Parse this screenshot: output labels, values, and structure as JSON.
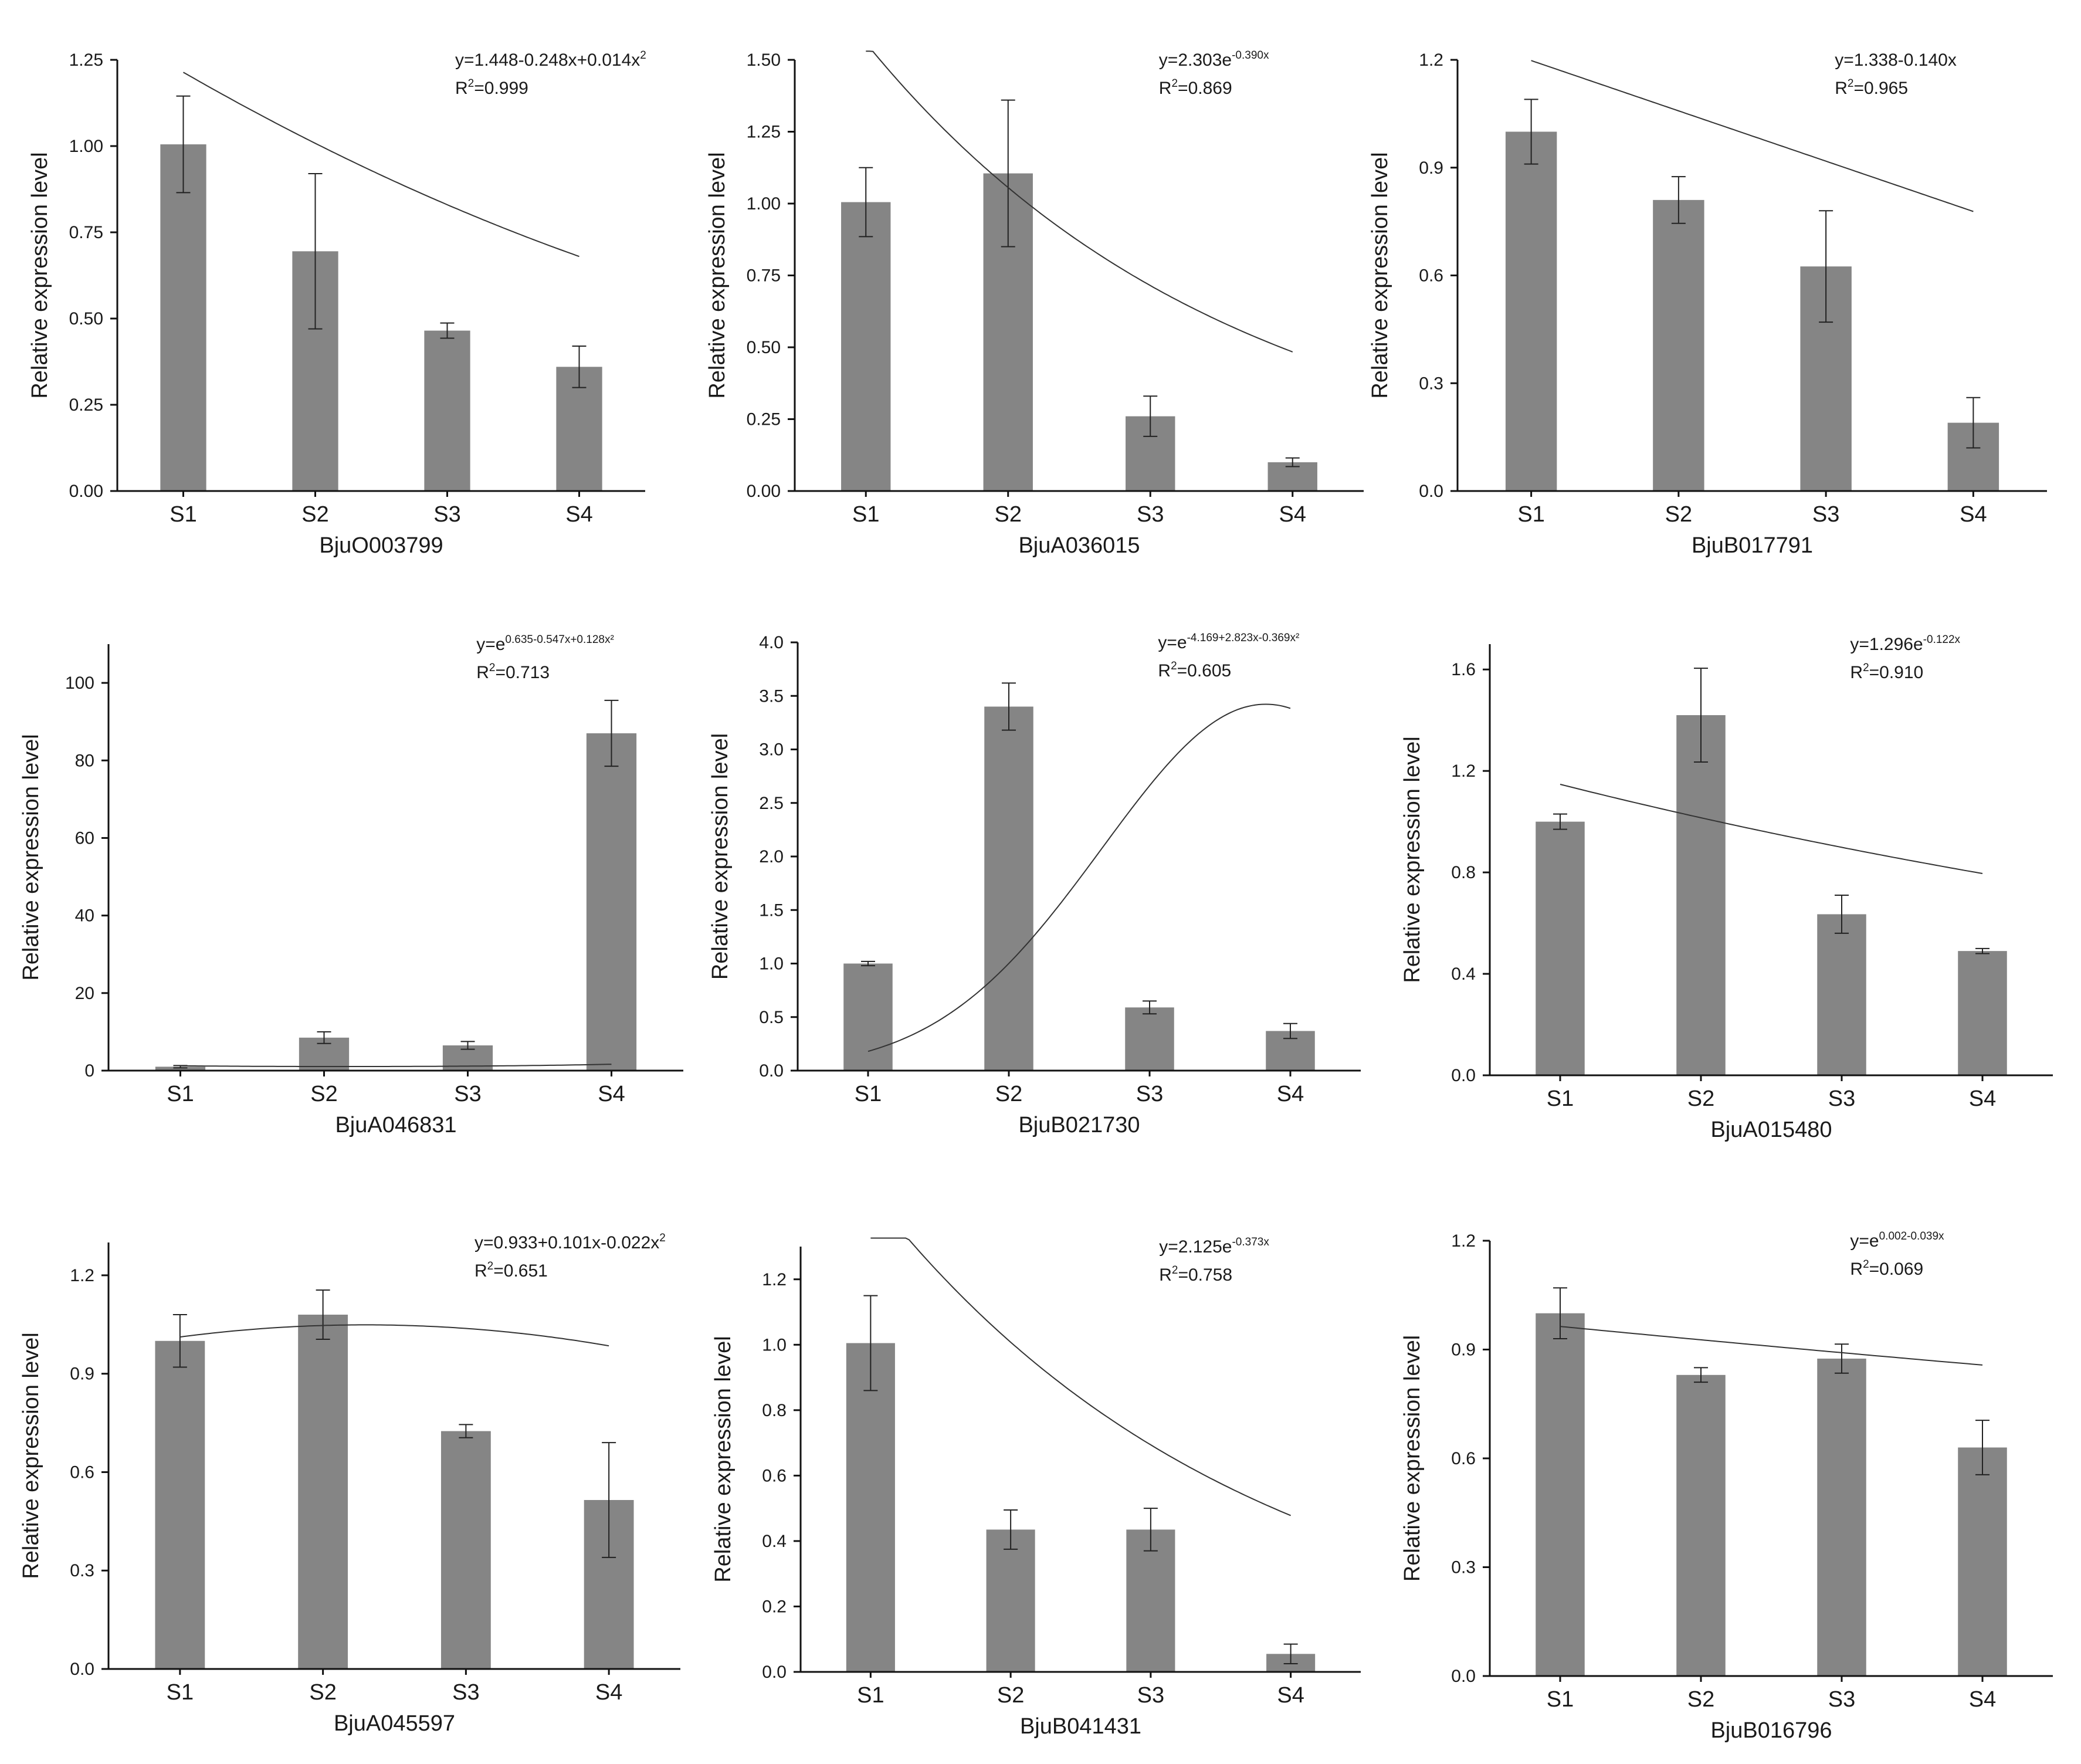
{
  "figure": {
    "ylabel": "Relative expression level",
    "bar_color": "#858585",
    "line_color": "#333333"
  },
  "chart_data": [
    {
      "type": "bar",
      "title": "BjuO003799",
      "xlabel": "BjuO003799",
      "ylabel": "Relative expression level",
      "categories": [
        "S1",
        "S2",
        "S3",
        "S4"
      ],
      "values": [
        1.005,
        0.695,
        0.465,
        0.36
      ],
      "errors": [
        0.14,
        0.225,
        0.022,
        0.06
      ],
      "ylim": [
        0,
        1.25
      ],
      "yticks": [
        0,
        0.25,
        0.5,
        0.75,
        1.0,
        1.25
      ],
      "ytick_labels": [
        "0.00",
        "0.25",
        "0.50",
        "0.75",
        "1.00",
        "1.25"
      ],
      "fit": {
        "kind": "poly",
        "coef": [
          1.448,
          -0.248,
          0.014
        ]
      },
      "equation": {
        "main": "y=1.448-0.248x+0.014x",
        "sup": "2"
      },
      "r2": {
        "pre": "R",
        "sup": "2",
        "post": "=0.999"
      }
    },
    {
      "type": "bar",
      "title": "BjuA036015",
      "xlabel": "BjuA036015",
      "ylabel": "Relative expression level",
      "categories": [
        "S1",
        "S2",
        "S3",
        "S4"
      ],
      "values": [
        1.005,
        1.105,
        0.26,
        0.1
      ],
      "errors": [
        0.12,
        0.255,
        0.07,
        0.015
      ],
      "ylim": [
        0,
        1.5
      ],
      "yticks": [
        0,
        0.25,
        0.5,
        0.75,
        1.0,
        1.25,
        1.5
      ],
      "ytick_labels": [
        "0.00",
        "0.25",
        "0.50",
        "0.75",
        "1.00",
        "1.25",
        "1.50"
      ],
      "fit": {
        "kind": "exp",
        "a": 2.303,
        "b": -0.39
      },
      "equation": {
        "main": "y=2.303e",
        "sup": "-0.390x"
      },
      "r2": {
        "pre": "R",
        "sup": "2",
        "post": "=0.869"
      }
    },
    {
      "type": "bar",
      "title": "BjuB017791",
      "xlabel": "BjuB017791",
      "ylabel": "Relative expression level",
      "categories": [
        "S1",
        "S2",
        "S3",
        "S4"
      ],
      "values": [
        1.0,
        0.81,
        0.625,
        0.19
      ],
      "errors": [
        0.09,
        0.065,
        0.155,
        0.07
      ],
      "ylim": [
        0,
        1.2
      ],
      "yticks": [
        0,
        0.3,
        0.6,
        0.9,
        1.2
      ],
      "ytick_labels": [
        "0.0",
        "0.3",
        "0.6",
        "0.9",
        "1.2"
      ],
      "fit": {
        "kind": "poly",
        "coef": [
          1.338,
          -0.14
        ]
      },
      "equation": {
        "main": "y=1.338-0.140x",
        "sup": ""
      },
      "r2": {
        "pre": "R",
        "sup": "2",
        "post": "=0.965"
      }
    },
    {
      "type": "bar",
      "title": "BjuA046831",
      "xlabel": "BjuA046831",
      "ylabel": "Relative expression level",
      "categories": [
        "S1",
        "S2",
        "S3",
        "S4"
      ],
      "values": [
        1.0,
        8.5,
        6.5,
        87.0
      ],
      "errors": [
        0.3,
        1.5,
        1.0,
        8.5
      ],
      "ylim": [
        0,
        110
      ],
      "yticks": [
        0,
        20,
        40,
        60,
        80,
        100
      ],
      "ytick_labels": [
        "0",
        "20",
        "40",
        "60",
        "80",
        "100"
      ],
      "fit": {
        "kind": "expquad",
        "coef": [
          0.635,
          -0.547,
          0.128
        ]
      },
      "equation": {
        "main": "y=e",
        "sup": "0.635-0.547x+0.128x²"
      },
      "r2": {
        "pre": "R",
        "sup": "2",
        "post": "=0.713"
      }
    },
    {
      "type": "bar",
      "title": "BjuB021730",
      "xlabel": "BjuB021730",
      "ylabel": "Relative expression level",
      "categories": [
        "S1",
        "S2",
        "S3",
        "S4"
      ],
      "values": [
        1.0,
        3.4,
        0.59,
        0.37
      ],
      "errors": [
        0.02,
        0.22,
        0.06,
        0.07
      ],
      "ylim": [
        0,
        4.0
      ],
      "yticks": [
        0,
        0.5,
        1.0,
        1.5,
        2.0,
        2.5,
        3.0,
        3.5,
        4.0
      ],
      "ytick_labels": [
        "0.0",
        "0.5",
        "1.0",
        "1.5",
        "2.0",
        "2.5",
        "3.0",
        "3.5",
        "4.0"
      ],
      "fit": {
        "kind": "expquad",
        "coef": [
          -4.169,
          2.823,
          -0.369
        ]
      },
      "equation": {
        "main": "y=e",
        "sup": "-4.169+2.823x-0.369x²"
      },
      "r2": {
        "pre": "R",
        "sup": "2",
        "post": "=0.605"
      }
    },
    {
      "type": "bar",
      "title": "BjuA015480",
      "xlabel": "BjuA015480",
      "ylabel": "Relative expression level",
      "categories": [
        "S1",
        "S2",
        "S3",
        "S4"
      ],
      "values": [
        1.0,
        1.42,
        0.635,
        0.49
      ],
      "errors": [
        0.03,
        0.185,
        0.075,
        0.01
      ],
      "ylim": [
        0,
        1.7
      ],
      "yticks": [
        0,
        0.4,
        0.8,
        1.2,
        1.6
      ],
      "ytick_labels": [
        "0.0",
        "0.4",
        "0.8",
        "1.2",
        "1.6"
      ],
      "fit": {
        "kind": "exp",
        "a": 1.296,
        "b": -0.122
      },
      "equation": {
        "main": "y=1.296e",
        "sup": "-0.122x"
      },
      "r2": {
        "pre": "R",
        "sup": "2",
        "post": "=0.910"
      }
    },
    {
      "type": "bar",
      "title": "BjuA045597",
      "xlabel": "BjuA045597",
      "ylabel": "Relative expression level",
      "categories": [
        "S1",
        "S2",
        "S3",
        "S4"
      ],
      "values": [
        1.0,
        1.08,
        0.725,
        0.515
      ],
      "errors": [
        0.08,
        0.075,
        0.02,
        0.175
      ],
      "ylim": [
        0,
        1.3
      ],
      "yticks": [
        0,
        0.3,
        0.6,
        0.9,
        1.2
      ],
      "ytick_labels": [
        "0.0",
        "0.3",
        "0.6",
        "0.9",
        "1.2"
      ],
      "fit": {
        "kind": "poly",
        "coef": [
          0.933,
          0.101,
          -0.022
        ]
      },
      "equation": {
        "main": "y=0.933+0.101x-0.022x",
        "sup": "2"
      },
      "r2": {
        "pre": "R",
        "sup": "2",
        "post": "=0.651"
      }
    },
    {
      "type": "bar",
      "title": "BjuB041431",
      "xlabel": "BjuB041431",
      "ylabel": "Relative expression level",
      "categories": [
        "S1",
        "S2",
        "S3",
        "S4"
      ],
      "values": [
        1.005,
        0.435,
        0.435,
        0.055
      ],
      "errors": [
        0.145,
        0.06,
        0.065,
        0.03
      ],
      "ylim": [
        0,
        1.3
      ],
      "yticks": [
        0,
        0.2,
        0.4,
        0.6,
        0.8,
        1.0,
        1.2
      ],
      "ytick_labels": [
        "0.0",
        "0.2",
        "0.4",
        "0.6",
        "0.8",
        "1.0",
        "1.2"
      ],
      "fit": {
        "kind": "exp",
        "a": 2.125,
        "b": -0.373
      },
      "equation": {
        "main": "y=2.125e",
        "sup": "-0.373x"
      },
      "r2": {
        "pre": "R",
        "sup": "2",
        "post": "=0.758"
      }
    },
    {
      "type": "bar",
      "title": "BjuB016796",
      "xlabel": "BjuB016796",
      "ylabel": "Relative expression level",
      "categories": [
        "S1",
        "S2",
        "S3",
        "S4"
      ],
      "values": [
        1.0,
        0.83,
        0.875,
        0.63
      ],
      "errors": [
        0.07,
        0.02,
        0.04,
        0.075
      ],
      "ylim": [
        0,
        1.2
      ],
      "yticks": [
        0,
        0.3,
        0.6,
        0.9,
        1.2
      ],
      "ytick_labels": [
        "0.0",
        "0.3",
        "0.6",
        "0.9",
        "1.2"
      ],
      "fit": {
        "kind": "expquad",
        "coef": [
          0.002,
          -0.039,
          0
        ]
      },
      "equation": {
        "main": "y=e",
        "sup": "0.002-0.039x"
      },
      "r2": {
        "pre": "R",
        "sup": "2",
        "post": "=0.069"
      }
    }
  ]
}
